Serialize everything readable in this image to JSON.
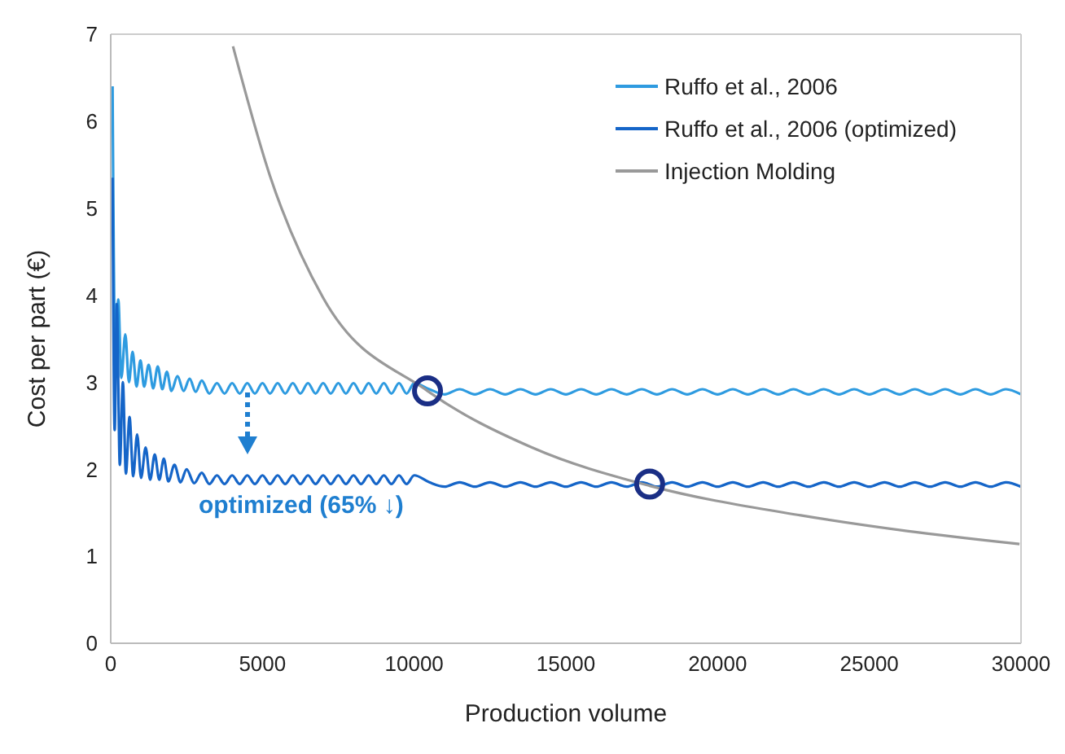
{
  "chart_data": {
    "type": "line",
    "xlabel": "Production volume",
    "ylabel": "Cost per part (€)",
    "xlim": [
      0,
      30000
    ],
    "xticks": [
      0,
      5000,
      10000,
      15000,
      20000,
      25000,
      30000
    ],
    "ylim": [
      0,
      7
    ],
    "yticks": [
      0,
      1,
      2,
      3,
      4,
      5,
      6,
      7
    ],
    "grid": false,
    "legend": "top right",
    "marker": "none",
    "line_style": "solid",
    "annotations": [
      "optimized (65% ↓)"
    ],
    "series": [
      {
        "name": "Ruffo et al., 2006",
        "color": "#2e9be0",
        "x": [
          60,
          150,
          250,
          350,
          480,
          600,
          720,
          850,
          980,
          1100,
          1250,
          1400,
          1550,
          1700,
          1850,
          2000,
          2200,
          2400,
          2600,
          2800,
          3000,
          3250,
          3500,
          3750,
          4000,
          4250,
          4500,
          4750,
          5000,
          5250,
          5500,
          5750,
          6000,
          6250,
          6500,
          6750,
          7000,
          7250,
          7500,
          7750,
          8000,
          8250,
          8500,
          8750,
          9000,
          9250,
          9500,
          9750,
          10000,
          10500,
          11000,
          11500,
          12000,
          12500,
          13000,
          13500,
          14000,
          14500,
          15000,
          15500,
          16000,
          16500,
          17000,
          17500,
          18000,
          18500,
          19000,
          19500,
          20000,
          20500,
          21000,
          21500,
          22000,
          22500,
          23000,
          23500,
          24000,
          24500,
          25000,
          25500,
          26000,
          26500,
          27000,
          27500,
          28000,
          28500,
          29000,
          29500,
          30000
        ],
        "values": [
          6.4,
          3.3,
          3.95,
          3.05,
          3.55,
          3.0,
          3.35,
          2.95,
          3.25,
          2.95,
          3.2,
          2.93,
          3.18,
          2.92,
          3.12,
          2.9,
          3.07,
          2.9,
          3.04,
          2.89,
          3.02,
          2.87,
          2.99,
          2.87,
          2.99,
          2.87,
          2.99,
          2.87,
          2.99,
          2.87,
          2.99,
          2.87,
          2.99,
          2.87,
          2.99,
          2.87,
          2.99,
          2.87,
          2.99,
          2.87,
          2.99,
          2.87,
          2.99,
          2.87,
          2.99,
          2.87,
          2.99,
          2.87,
          2.99,
          2.92,
          2.86,
          2.92,
          2.86,
          2.92,
          2.86,
          2.92,
          2.86,
          2.92,
          2.86,
          2.92,
          2.86,
          2.92,
          2.86,
          2.92,
          2.86,
          2.92,
          2.86,
          2.92,
          2.86,
          2.92,
          2.86,
          2.92,
          2.86,
          2.92,
          2.86,
          2.92,
          2.86,
          2.92,
          2.86,
          2.92,
          2.86,
          2.92,
          2.86,
          2.92,
          2.86,
          2.92,
          2.86,
          2.92,
          2.86
        ]
      },
      {
        "name": "Ruffo et al., 2006 (optimized)",
        "color": "#1565c8",
        "x": [
          60,
          130,
          200,
          300,
          400,
          500,
          620,
          740,
          870,
          1000,
          1150,
          1300,
          1450,
          1600,
          1750,
          1900,
          2100,
          2300,
          2500,
          2750,
          3000,
          3250,
          3500,
          3750,
          4000,
          4250,
          4500,
          4750,
          5000,
          5250,
          5500,
          5750,
          6000,
          6250,
          6500,
          6750,
          7000,
          7250,
          7500,
          7750,
          8000,
          8250,
          8500,
          8750,
          9000,
          9250,
          9500,
          9750,
          10000,
          10500,
          11000,
          11500,
          12000,
          12500,
          13000,
          13500,
          14000,
          14500,
          15000,
          15500,
          16000,
          16500,
          17000,
          17500,
          18000,
          18500,
          19000,
          19500,
          20000,
          20500,
          21000,
          21500,
          22000,
          22500,
          23000,
          23500,
          24000,
          24500,
          25000,
          25500,
          26000,
          26500,
          27000,
          27500,
          28000,
          28500,
          29000,
          29500,
          30000
        ],
        "values": [
          5.35,
          2.45,
          3.9,
          2.05,
          3.0,
          1.95,
          2.6,
          1.92,
          2.4,
          1.9,
          2.25,
          1.88,
          2.17,
          1.88,
          2.12,
          1.86,
          2.05,
          1.85,
          2.0,
          1.84,
          1.96,
          1.83,
          1.93,
          1.83,
          1.93,
          1.83,
          1.93,
          1.83,
          1.93,
          1.83,
          1.93,
          1.83,
          1.93,
          1.83,
          1.93,
          1.83,
          1.93,
          1.83,
          1.93,
          1.83,
          1.93,
          1.83,
          1.93,
          1.83,
          1.93,
          1.83,
          1.93,
          1.83,
          1.93,
          1.85,
          1.8,
          1.85,
          1.8,
          1.85,
          1.8,
          1.85,
          1.8,
          1.85,
          1.8,
          1.85,
          1.8,
          1.85,
          1.8,
          1.85,
          1.8,
          1.85,
          1.8,
          1.85,
          1.8,
          1.85,
          1.8,
          1.85,
          1.8,
          1.85,
          1.8,
          1.85,
          1.8,
          1.85,
          1.8,
          1.85,
          1.8,
          1.85,
          1.8,
          1.85,
          1.8,
          1.85,
          1.8,
          1.85,
          1.8
        ]
      },
      {
        "name": "Injection Molding",
        "color": "#999999",
        "x": [
          4030,
          5250,
          7000,
          10440,
          13880,
          17760,
          22740,
          26240,
          29950
        ],
        "values": [
          6.86,
          5.37,
          3.97,
          2.9,
          2.25,
          1.81,
          1.47,
          1.29,
          1.14
        ]
      },
      {
        "type": "scatter",
        "marker": "circle",
        "color": "#1a2e85",
        "x": [
          10440,
          17760
        ],
        "values": [
          2.9,
          1.83
        ]
      }
    ]
  }
}
